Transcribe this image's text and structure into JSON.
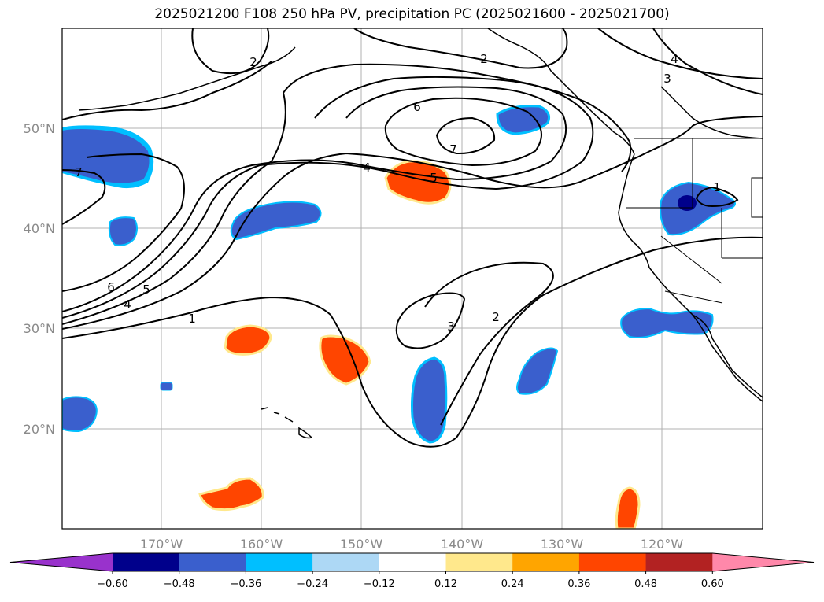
{
  "title": "2025021200 F108 250 hPa PV, precipitation PC (2025021600 - 2025021700)",
  "lat_labels": [
    "50°N",
    "40°N",
    "30°N",
    "20°N"
  ],
  "lon_labels": [
    "170°W",
    "160°W",
    "150°W",
    "140°W",
    "130°W",
    "120°W"
  ],
  "contour_labels": [
    "1",
    "2",
    "3",
    "4",
    "5",
    "6",
    "7"
  ],
  "colorbar": {
    "ticks": [
      "−0.60",
      "−0.48",
      "−0.36",
      "−0.24",
      "−0.12",
      "0.12",
      "0.24",
      "0.36",
      "0.48",
      "0.60"
    ],
    "colors": [
      "#9932cc",
      "#00008b",
      "#3a5fcd",
      "#00bfff",
      "#add8f5",
      "#ffffff",
      "#ffe88c",
      "#ffa500",
      "#ff4500",
      "#b22222",
      "#ff88aa"
    ]
  },
  "colors": {
    "contour": "#000000",
    "coast": "#000000",
    "grid": "#b0b0b0",
    "neg_light": "#00bfff",
    "neg_mid": "#3a5fcd",
    "neg_dark": "#00008b",
    "pos_light": "#ffe88c",
    "pos_mid": "#ffa500",
    "pos_dark": "#ff4500"
  }
}
